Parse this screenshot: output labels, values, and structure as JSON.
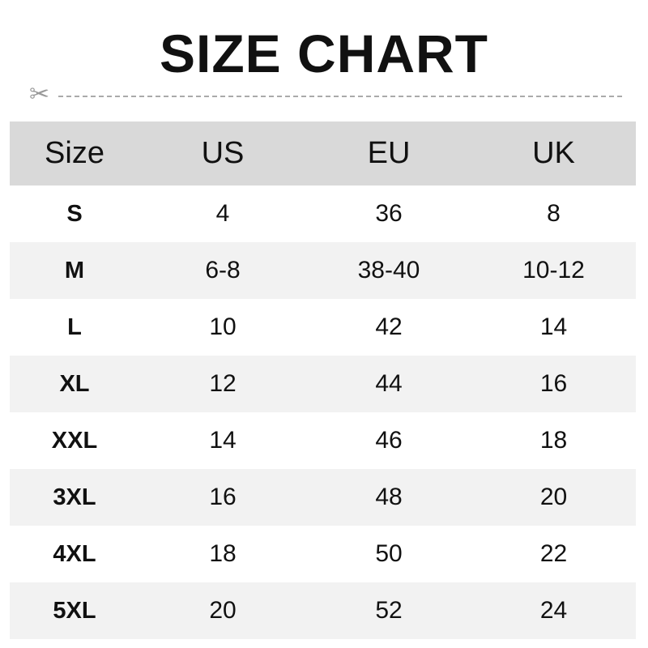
{
  "title": "SIZE CHART",
  "icons": {
    "cut": "scissors-icon"
  },
  "colors": {
    "header_bg": "#d9d9d9",
    "alt_row_bg": "#f2f2f2"
  },
  "table": {
    "headers": [
      "Size",
      "US",
      "EU",
      "UK"
    ],
    "rows": [
      [
        "S",
        "4",
        "36",
        "8"
      ],
      [
        "M",
        "6-8",
        "38-40",
        "10-12"
      ],
      [
        "L",
        "10",
        "42",
        "14"
      ],
      [
        "XL",
        "12",
        "44",
        "16"
      ],
      [
        "XXL",
        "14",
        "46",
        "18"
      ],
      [
        "3XL",
        "16",
        "48",
        "20"
      ],
      [
        "4XL",
        "18",
        "50",
        "22"
      ],
      [
        "5XL",
        "20",
        "52",
        "24"
      ]
    ]
  }
}
